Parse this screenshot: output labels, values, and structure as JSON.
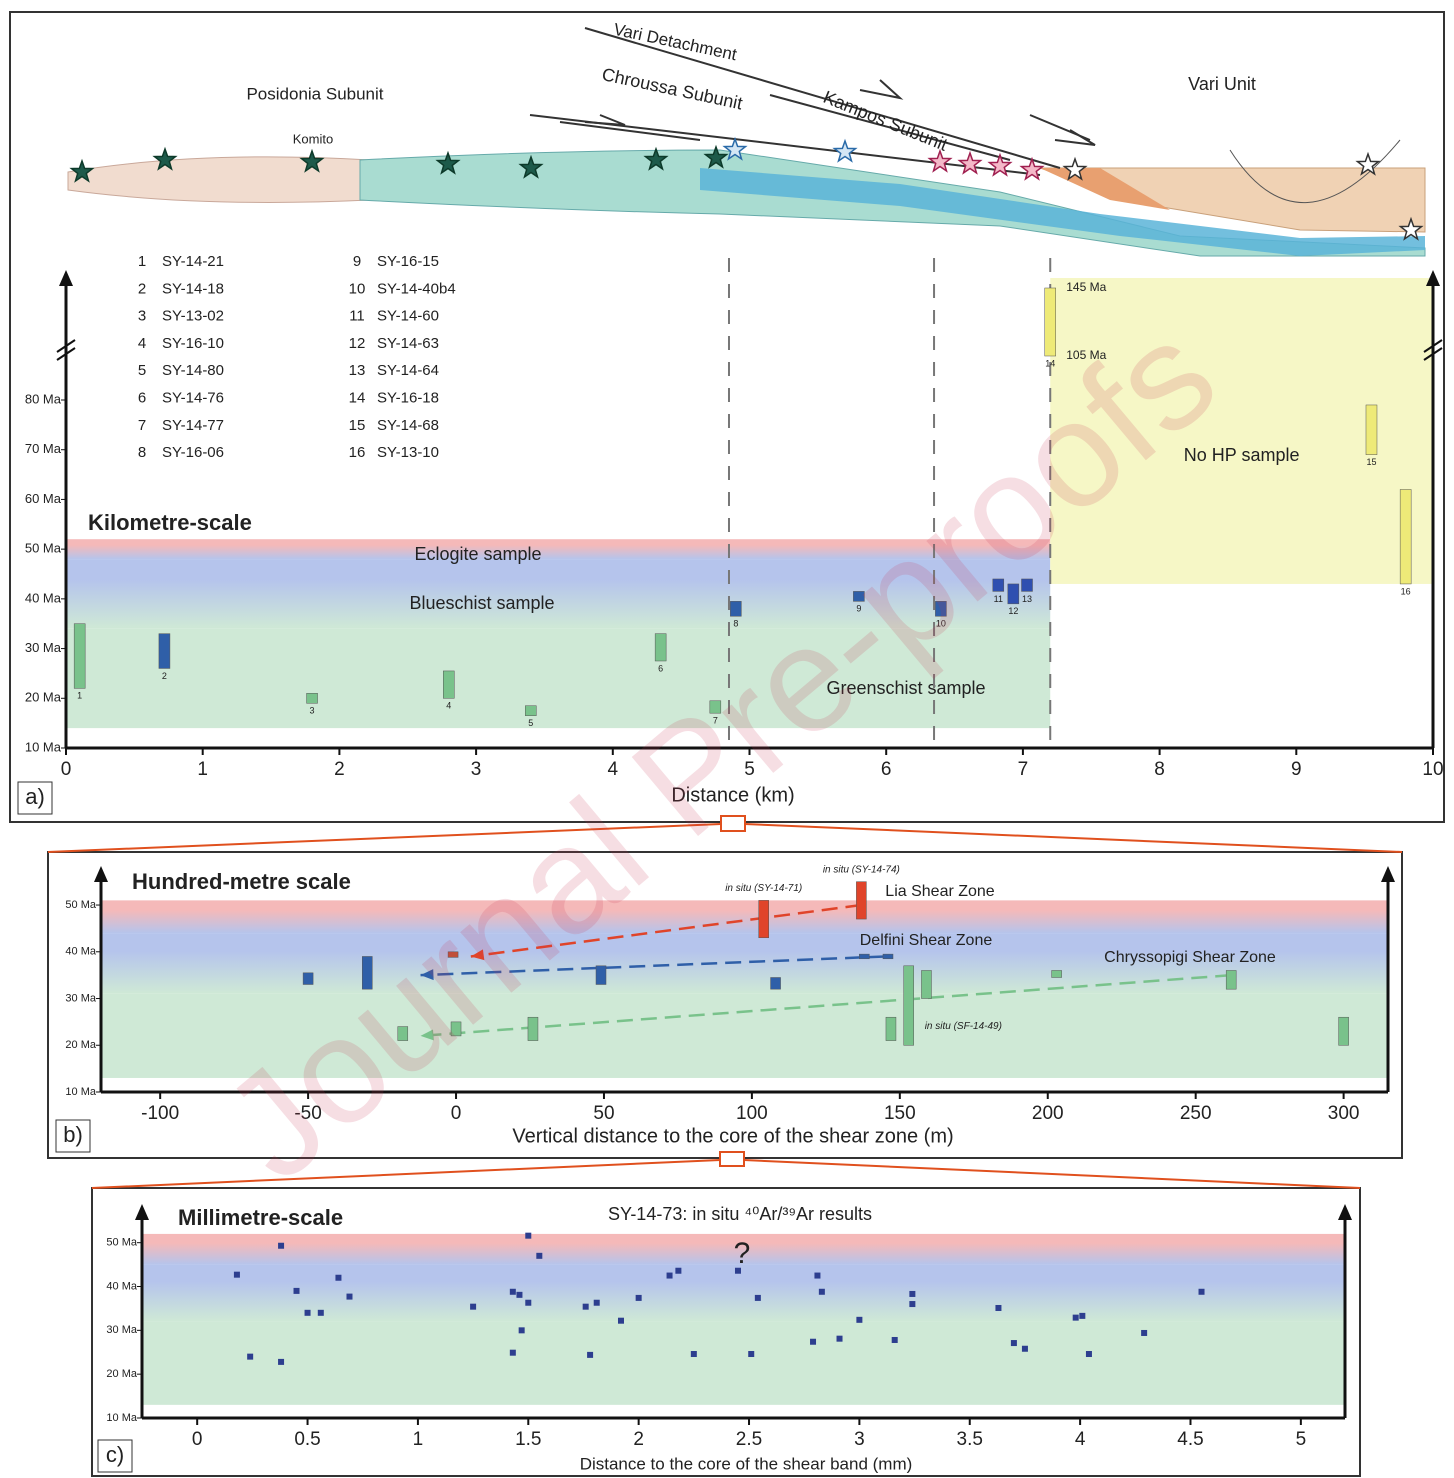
{
  "watermark": "Journal Pre-proofs",
  "chart_data": [
    {
      "type": "range",
      "panel": "a)",
      "title": "Kilometre-scale",
      "xlabel": "Distance (km)",
      "xlim": [
        0,
        10
      ],
      "xticks": [
        0,
        1,
        2,
        3,
        4,
        5,
        6,
        7,
        8,
        9,
        10
      ],
      "ylim": [
        10,
        80
      ],
      "yticks": [
        {
          "value": 10,
          "label": "10 Ma"
        },
        {
          "value": 20,
          "label": "20 Ma"
        },
        {
          "value": 30,
          "label": "30 Ma"
        },
        {
          "value": 40,
          "label": "40 Ma"
        },
        {
          "value": 50,
          "label": "50 Ma"
        },
        {
          "value": 60,
          "label": "60 Ma"
        },
        {
          "value": 70,
          "label": "70 Ma"
        },
        {
          "value": 80,
          "label": "80 Ma"
        }
      ],
      "section_labels": [
        "Posidonia Subunit",
        "Komito",
        "Vari Detachment",
        "Chroussa Subunit",
        "Kampos Subunit",
        "Vari Unit"
      ],
      "bands": [
        {
          "name": "Eclogite sample",
          "range": [
            48,
            52
          ],
          "color": "#f5b9b9"
        },
        {
          "name": "Blueschist sample",
          "range": [
            34,
            48
          ],
          "color": "#b5c4ec"
        },
        {
          "name": "Greenschist sample",
          "range": [
            14,
            34
          ],
          "color": "#cfe9d6"
        }
      ],
      "band_x": [
        0,
        7.2
      ],
      "boundaries": [
        4.85,
        6.35,
        7.2
      ],
      "no_hp": {
        "label": "No HP sample",
        "x": [
          7.2,
          10
        ],
        "y_from": 43,
        "color": "#f6f7c6"
      },
      "samples": [
        {
          "label": "1",
          "name": "SY-14-21",
          "x": 0.1,
          "values": [
            22,
            35
          ],
          "color": "#79c28b"
        },
        {
          "label": "2",
          "name": "SY-14-18",
          "x": 0.72,
          "values": [
            26,
            33
          ],
          "color": "#2f5fa8"
        },
        {
          "label": "3",
          "name": "SY-13-02",
          "x": 1.8,
          "values": [
            19,
            21
          ],
          "color": "#79c28b"
        },
        {
          "label": "4",
          "name": "SY-16-10",
          "x": 2.8,
          "values": [
            20,
            25.5
          ],
          "color": "#79c28b"
        },
        {
          "label": "5",
          "name": "SY-14-80",
          "x": 3.4,
          "values": [
            16.5,
            18.5
          ],
          "color": "#79c28b"
        },
        {
          "label": "6",
          "name": "SY-14-76",
          "x": 4.35,
          "values": [
            27.5,
            33
          ],
          "color": "#79c28b"
        },
        {
          "label": "7",
          "name": "SY-14-77",
          "x": 4.75,
          "values": [
            17,
            19.5
          ],
          "color": "#79c28b"
        },
        {
          "label": "8",
          "name": "SY-16-06",
          "x": 4.9,
          "values": [
            36.5,
            39.5
          ],
          "color": "#2f5fa8"
        },
        {
          "label": "9",
          "name": "SY-16-15",
          "x": 5.8,
          "values": [
            39.5,
            41.5
          ],
          "color": "#2f5fa8"
        },
        {
          "label": "10",
          "name": "SY-14-40b4",
          "x": 6.4,
          "values": [
            36.5,
            39.5
          ],
          "color": "#2f5fa8"
        },
        {
          "label": "11",
          "name": "SY-14-60",
          "x": 6.82,
          "values": [
            41.5,
            44
          ],
          "color": "#2f4fb0"
        },
        {
          "label": "12",
          "name": "SY-14-63",
          "x": 6.93,
          "values": [
            39,
            43
          ],
          "color": "#2f4fb0"
        },
        {
          "label": "13",
          "name": "SY-14-64",
          "x": 7.03,
          "values": [
            41.5,
            44
          ],
          "color": "#2f4fb0"
        },
        {
          "label": "14",
          "name": "SY-16-18",
          "x": 7.2,
          "values": [
            105,
            145
          ],
          "value_labels": [
            "105 Ma",
            "145 Ma"
          ],
          "color": "#eeea78"
        },
        {
          "label": "15",
          "name": "SY-14-68",
          "x": 9.55,
          "values": [
            69,
            79
          ],
          "color": "#eeea78"
        },
        {
          "label": "16",
          "name": "SY-13-10",
          "x": 9.8,
          "values": [
            43,
            62
          ],
          "color": "#eeea78"
        }
      ]
    },
    {
      "type": "range",
      "panel": "b)",
      "title": "Hundred-metre scale",
      "xlabel": "Vertical distance to the core of the shear zone (m)",
      "xlim": [
        -120,
        315
      ],
      "xticks": [
        -100,
        -50,
        0,
        50,
        100,
        150,
        200,
        250,
        300
      ],
      "ylim": [
        10,
        56
      ],
      "yticks": [
        {
          "value": 10,
          "label": "10 Ma"
        },
        {
          "value": 20,
          "label": "20 Ma"
        },
        {
          "value": 30,
          "label": "30 Ma"
        },
        {
          "value": 40,
          "label": "40 Ma"
        },
        {
          "value": 50,
          "label": "50 Ma"
        }
      ],
      "bands": [
        {
          "range": [
            44,
            51
          ],
          "color": "#f5b9b9"
        },
        {
          "range": [
            31,
            44
          ],
          "color": "#b5c4ec"
        },
        {
          "range": [
            13,
            31
          ],
          "color": "#cfe9d6"
        }
      ],
      "band_x": [
        -120,
        315
      ],
      "shear_zones": [
        {
          "name": "Lia Shear Zone",
          "color": "#e0442a",
          "from": [
            137,
            50
          ],
          "to": [
            5,
            39
          ]
        },
        {
          "name": "Delfini Shear Zone",
          "color": "#2f5fa8",
          "from": [
            145,
            39
          ],
          "to": [
            -12,
            35
          ]
        },
        {
          "name": "Chryssopigi Shear Zone",
          "color": "#79c28b",
          "from": [
            262,
            35
          ],
          "to": [
            -12,
            22
          ]
        }
      ],
      "samples": [
        {
          "x": -50,
          "values": [
            33,
            35.5
          ],
          "color": "#2f5fa8"
        },
        {
          "x": -30,
          "values": [
            32,
            39
          ],
          "color": "#2f5fa8"
        },
        {
          "x": -1,
          "values": [
            38.8,
            40
          ],
          "color": "#c0503a"
        },
        {
          "x": -18,
          "values": [
            21,
            24
          ],
          "color": "#79c28b"
        },
        {
          "x": 0,
          "values": [
            22,
            25
          ],
          "color": "#79c28b"
        },
        {
          "x": 26,
          "values": [
            21,
            26
          ],
          "color": "#79c28b"
        },
        {
          "x": 49,
          "values": [
            33,
            37
          ],
          "color": "#2f5fa8"
        },
        {
          "x": 104,
          "values": [
            43,
            51
          ],
          "color": "#e0442a",
          "label": "in situ (SY-14-71)"
        },
        {
          "x": 137,
          "values": [
            47,
            55
          ],
          "color": "#e0442a",
          "label": "in situ (SY-14-74)"
        },
        {
          "x": 108,
          "values": [
            32,
            34.5
          ],
          "color": "#2f5fa8"
        },
        {
          "x": 138,
          "values": [
            38.5,
            39.5
          ],
          "color": "#2f5fa8"
        },
        {
          "x": 146,
          "values": [
            38.5,
            39.5
          ],
          "color": "#2f5fa8"
        },
        {
          "x": 147,
          "values": [
            21,
            26
          ],
          "color": "#79c28b"
        },
        {
          "x": 153,
          "values": [
            20,
            37
          ],
          "color": "#79c28b",
          "label": "in situ (SF-14-49)"
        },
        {
          "x": 159,
          "values": [
            30,
            36
          ],
          "color": "#79c28b"
        },
        {
          "x": 203,
          "values": [
            34.5,
            36
          ],
          "color": "#79c28b"
        },
        {
          "x": 262,
          "values": [
            32,
            36
          ],
          "color": "#79c28b"
        },
        {
          "x": 300,
          "values": [
            20,
            26
          ],
          "color": "#79c28b"
        }
      ]
    },
    {
      "type": "scatter",
      "panel": "c)",
      "title": "Millimetre-scale",
      "subtitle": "SY-14-73: in situ ⁴⁰Ar/³⁹Ar results",
      "annotation": "?",
      "xlabel": "Distance to the core of the  shear band (mm)",
      "xlim": [
        -0.25,
        5.2
      ],
      "xticks": [
        0,
        0.5,
        1,
        1.5,
        2,
        2.5,
        3,
        3.5,
        4,
        4.5,
        5
      ],
      "ylim": [
        10,
        57
      ],
      "yticks": [
        {
          "value": 10,
          "label": "10 Ma"
        },
        {
          "value": 20,
          "label": "20 Ma"
        },
        {
          "value": 30,
          "label": "30 Ma"
        },
        {
          "value": 40,
          "label": "40 Ma"
        },
        {
          "value": 50,
          "label": "50 Ma"
        }
      ],
      "bands": [
        {
          "range": [
            45,
            52
          ],
          "color": "#f5b9b9"
        },
        {
          "range": [
            32,
            45
          ],
          "color": "#b5c4ec"
        },
        {
          "range": [
            13,
            32
          ],
          "color": "#cfe9d6"
        }
      ],
      "band_x": [
        -0.25,
        5.2
      ],
      "color": "#2d3e8f",
      "x": [
        0.18,
        0.24,
        0.38,
        0.38,
        0.45,
        0.5,
        0.56,
        0.64,
        0.69,
        1.25,
        1.43,
        1.43,
        1.46,
        1.47,
        1.5,
        1.5,
        1.55,
        1.76,
        1.78,
        1.81,
        1.92,
        2.0,
        2.14,
        2.18,
        2.25,
        2.45,
        2.51,
        2.54,
        2.79,
        2.81,
        2.83,
        2.91,
        3.0,
        3.16,
        3.24,
        3.24,
        3.63,
        3.7,
        3.75,
        3.98,
        4.01,
        4.04,
        4.29,
        4.55
      ],
      "values": [
        42.7,
        24,
        49.3,
        22.8,
        39,
        34,
        34,
        42,
        37.7,
        35.4,
        24.9,
        38.8,
        38.1,
        30,
        36.3,
        51.6,
        47,
        35.4,
        24.4,
        36.3,
        32.2,
        37.4,
        42.5,
        43.6,
        24.6,
        43.6,
        24.6,
        37.4,
        27.4,
        42.5,
        38.8,
        28.1,
        32.4,
        27.8,
        38.3,
        36,
        35.1,
        27.1,
        25.8,
        32.9,
        33.3,
        24.6,
        29.4,
        38.8
      ]
    }
  ]
}
